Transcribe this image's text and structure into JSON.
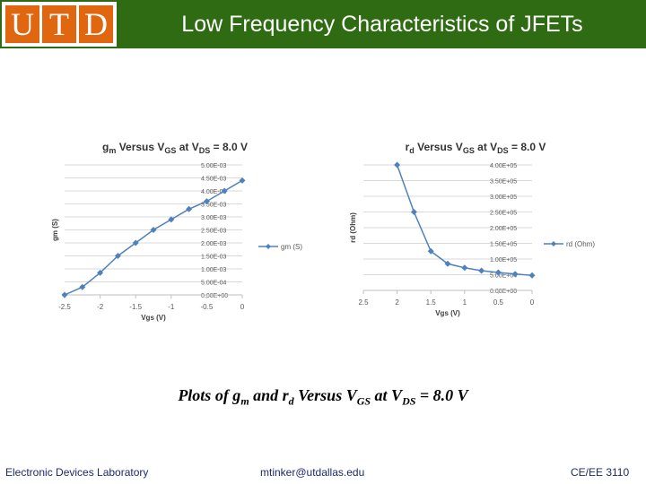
{
  "header": {
    "logo_letters": [
      "U",
      "T",
      "D"
    ],
    "title": "Low Frequency Characteristics of JFETs",
    "bg_color": "#2e6b12",
    "logo_color": "#e0660f"
  },
  "chart_data": [
    {
      "type": "line",
      "title_main": "g",
      "title_sub": "m",
      "title_rest": " Versus V",
      "title_sub2": "GS",
      "title_rest2": " at V",
      "title_sub3": "DS",
      "title_end": " = 8.0 V",
      "xlabel": "Vgs (V)",
      "ylabel": "gm (S)",
      "x_ticks": [
        "-2.5",
        "-2",
        "-1.5",
        "-1",
        "-0.5",
        "0"
      ],
      "y_ticks": [
        "0.00E+00",
        "5.00E-04",
        "1.00E-03",
        "1.50E-03",
        "2.00E-03",
        "2.50E-03",
        "3.00E-03",
        "3.50E-03",
        "4.00E-03",
        "4.50E-03",
        "5.00E-03"
      ],
      "xlim": [
        -2.5,
        0
      ],
      "ylim": [
        0,
        0.005
      ],
      "series": [
        {
          "name": "gm (S)",
          "x": [
            -2.5,
            -2.25,
            -2.0,
            -1.75,
            -1.5,
            -1.25,
            -1.0,
            -0.75,
            -0.5,
            -0.25,
            0.0
          ],
          "y": [
            0.0,
            0.0003,
            0.00085,
            0.0015,
            0.002,
            0.0025,
            0.0029,
            0.0033,
            0.0036,
            0.004,
            0.0044
          ]
        }
      ],
      "legend": "gm (S)",
      "color": "#4f81bd"
    },
    {
      "type": "line",
      "title_main": "r",
      "title_sub": "d",
      "title_rest": " Versus V",
      "title_sub2": "GS",
      "title_rest2": " at V",
      "title_sub3": "DS",
      "title_end": " = 8.0 V",
      "xlabel": "Vgs (V)",
      "ylabel": "rd (Ohm)",
      "x_ticks": [
        "2.5",
        "2",
        "1.5",
        "1",
        "0.5",
        "0"
      ],
      "y_ticks": [
        "0.00E+00",
        "5.00E+04",
        "1.00E+05",
        "1.50E+05",
        "2.00E+05",
        "2.50E+05",
        "3.00E+05",
        "3.50E+05",
        "4.00E+05"
      ],
      "xlim": [
        2.5,
        0
      ],
      "ylim": [
        0,
        400000
      ],
      "series": [
        {
          "name": "rd (Ohm)",
          "x": [
            2.0,
            1.75,
            1.5,
            1.25,
            1.0,
            0.75,
            0.5,
            0.25,
            0.0
          ],
          "y": [
            400000,
            250000,
            125000,
            85000,
            72000,
            63000,
            57000,
            52000,
            48000
          ]
        }
      ],
      "legend": "rd (Ohm)",
      "color": "#4f81bd"
    }
  ],
  "caption": {
    "p1": "Plots of g",
    "s1": "m",
    "p2": " and r",
    "s2": "d",
    "p3": " Versus V",
    "s3": "GS",
    "p4": " at V",
    "s4": "DS",
    "p5": " = 8.0 V"
  },
  "footer": {
    "left": "Electronic Devices Laboratory",
    "center": "mtinker@utdallas.edu",
    "right": "CE/EE 3110"
  }
}
